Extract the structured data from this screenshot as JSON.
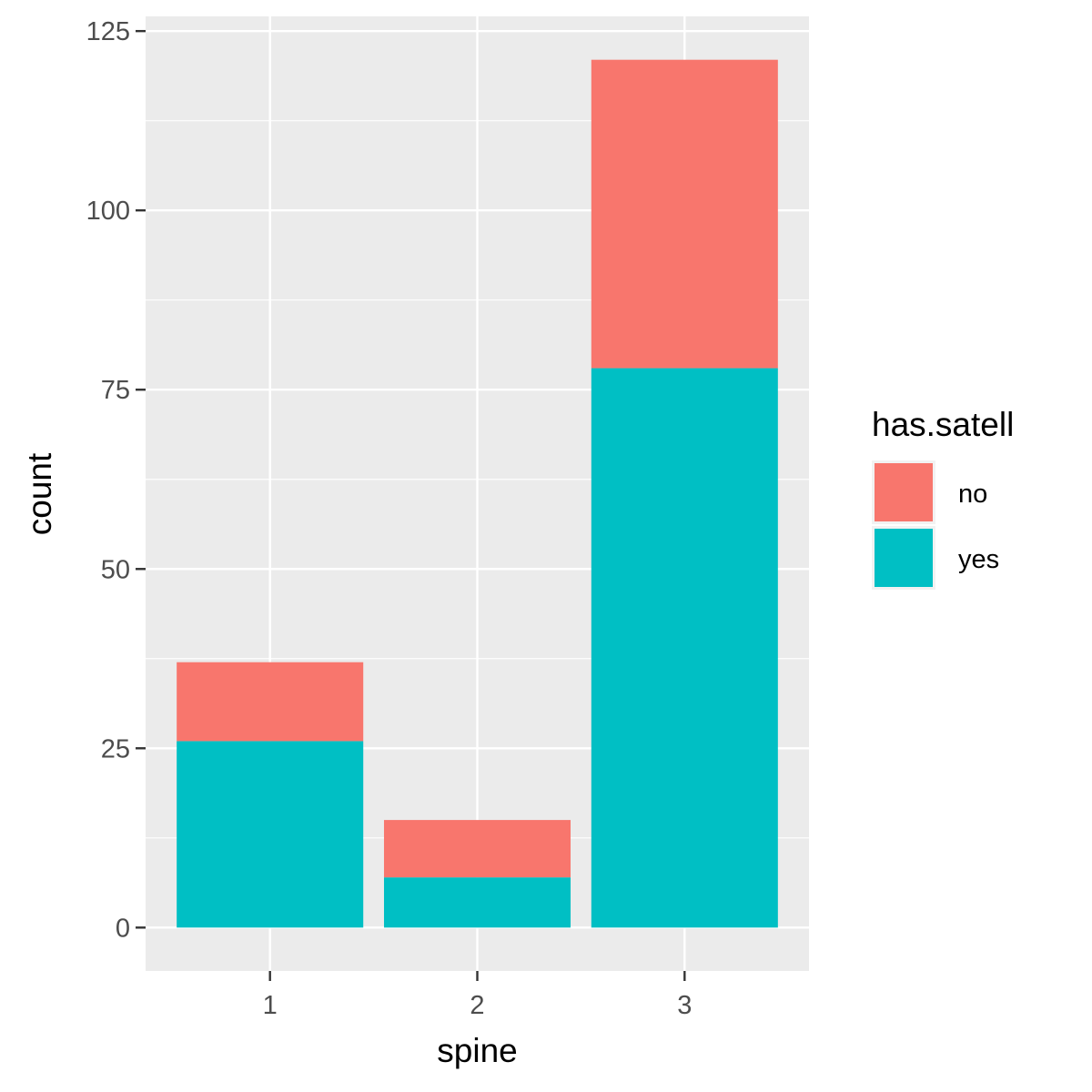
{
  "chart_data": {
    "type": "bar",
    "stacked": true,
    "categories": [
      "1",
      "2",
      "3"
    ],
    "series": [
      {
        "name": "no",
        "values": [
          11,
          8,
          43
        ]
      },
      {
        "name": "yes",
        "values": [
          26,
          7,
          78
        ]
      }
    ],
    "totals": [
      37,
      15,
      121
    ],
    "xlabel": "spine",
    "ylabel": "count",
    "ylim": [
      -6.05,
      127.05
    ],
    "yticks": [
      0,
      25,
      50,
      75,
      100,
      125
    ],
    "ytick_labels": [
      "0",
      "25",
      "50",
      "75",
      "100",
      "125"
    ],
    "grid": true,
    "legend": {
      "title": "has.satell",
      "position": "right"
    },
    "colors": {
      "no": "#F8766D",
      "yes": "#00BFC4",
      "panel": "#EBEBEB",
      "grid": "#FFFFFF"
    }
  }
}
